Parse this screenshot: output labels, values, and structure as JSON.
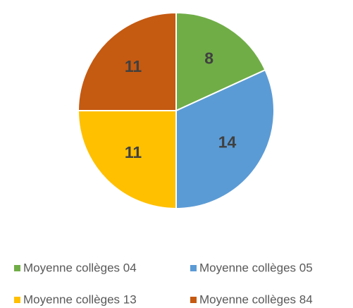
{
  "chart_data": {
    "type": "pie",
    "categories": [
      "Moyenne collèges 04",
      "Moyenne collèges 05",
      "Moyenne collèges 13",
      "Moyenne collèges 84"
    ],
    "values": [
      8,
      14,
      11,
      11
    ],
    "colors": [
      "#70ad47",
      "#5b9bd5",
      "#ffc000",
      "#c55a11"
    ]
  }
}
